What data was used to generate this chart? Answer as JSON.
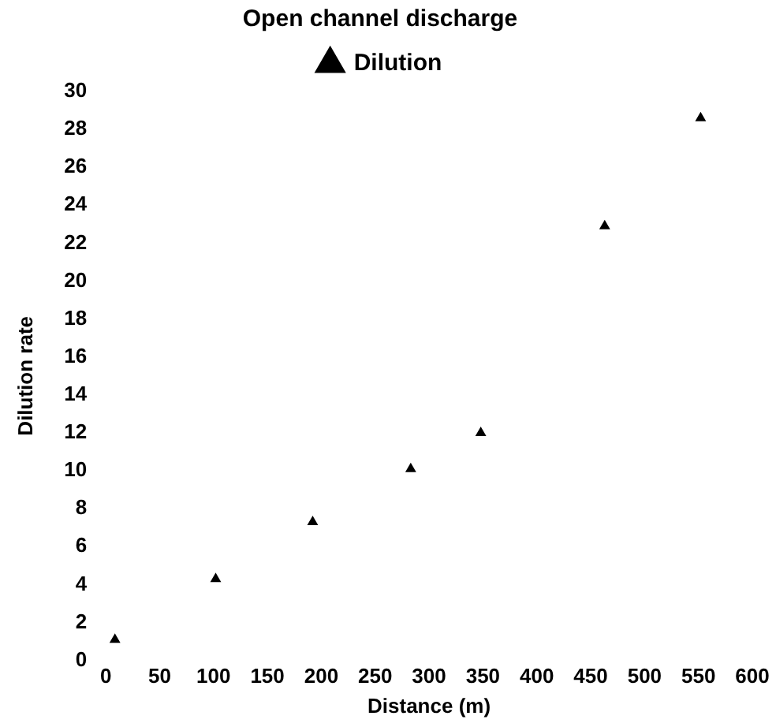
{
  "chart_data": {
    "type": "scatter",
    "xlabel": "Distance (m)",
    "ylabel": "Dilution rate",
    "legend_title": "Open channel discharge",
    "series": [
      {
        "name": "Dilution",
        "color": "#000000",
        "x": [
          8.5,
          102,
          192,
          283,
          348,
          463,
          552
        ],
        "values": [
          1.1,
          4.3,
          7.3,
          10.1,
          12,
          22.9,
          28.6
        ]
      }
    ],
    "xlim": [
      0,
      600
    ],
    "xticks": [
      0,
      50,
      100,
      150,
      200,
      250,
      300,
      350,
      400,
      450,
      500,
      550,
      600
    ],
    "ylim": [
      0,
      30
    ],
    "yticks": [
      0,
      2,
      4,
      6,
      8,
      10,
      12,
      14,
      16,
      18,
      20,
      22,
      24,
      26,
      28,
      30
    ],
    "marker": "triangle",
    "legend": "top",
    "grid": false
  }
}
